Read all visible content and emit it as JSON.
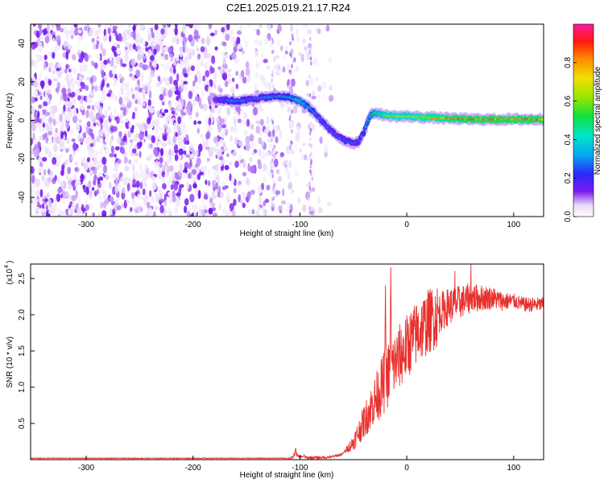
{
  "page_title": "C2E1.2025.019.21.17.R24",
  "chart_data": [
    {
      "type": "heatmap",
      "id": "spectrogram",
      "xlabel": "Height of straight line (km)",
      "ylabel": "Frequency (Hz)",
      "xlim": [
        -352,
        128
      ],
      "ylim": [
        -50,
        50
      ],
      "xticks": [
        -300,
        -200,
        -100,
        0,
        100
      ],
      "yticks": [
        -40,
        -20,
        0,
        20,
        40
      ],
      "colorbar": {
        "label": "Normalized spectral amplitude",
        "range": [
          0,
          1
        ],
        "ticks": [
          0.0,
          0.2,
          0.4,
          0.6,
          0.8
        ],
        "tick_labels": [
          "0.0",
          "0.2",
          "0.4",
          "0.6",
          "0.8"
        ]
      },
      "ridge": {
        "x": [
          -180,
          -170,
          -160,
          -150,
          -140,
          -130,
          -120,
          -110,
          -100,
          -90,
          -80,
          -70,
          -60,
          -50,
          -45,
          -40,
          -35,
          -30,
          -20,
          -10,
          0,
          20,
          40,
          60,
          80,
          100,
          120
        ],
        "y": [
          11,
          10.5,
          10,
          10.5,
          11.5,
          12,
          12.5,
          12,
          10,
          6,
          0,
          -6,
          -10,
          -12,
          -11,
          -6,
          2,
          4,
          2.5,
          2,
          2,
          1.5,
          1,
          0.5,
          0.5,
          0.5,
          0.5
        ],
        "peak_amplitude": [
          0.2,
          0.3,
          0.35,
          0.3,
          0.3,
          0.35,
          0.35,
          0.4,
          0.5,
          0.4,
          0.3,
          0.3,
          0.3,
          0.3,
          0.25,
          0.3,
          0.45,
          0.55,
          0.7,
          0.75,
          0.7,
          0.8,
          0.85,
          0.9,
          0.9,
          0.9,
          0.9
        ]
      },
      "noise_region": {
        "x_range": [
          -352,
          -90
        ],
        "y_range": [
          -50,
          50
        ],
        "amplitude": [
          0.02,
          0.15
        ]
      }
    },
    {
      "type": "line",
      "id": "snr",
      "xlabel": "Height of straight line (km)",
      "ylabel": "SNR (10 * v/v)",
      "y_multiplier": "(x10",
      "y_multiplier_exp": "4",
      "xlim": [
        -352,
        128
      ],
      "ylim": [
        0,
        2.7
      ],
      "xticks": [
        -300,
        -200,
        -100,
        0,
        100
      ],
      "yticks": [
        0.5,
        1.0,
        1.5,
        2.0,
        2.5
      ],
      "ytick_labels": [
        "0.5",
        "1.0",
        "1.5",
        "2.0",
        "2.5"
      ],
      "series": [
        {
          "color": "#e8302c",
          "trend": {
            "x": [
              -352,
              -110,
              -100,
              -95,
              -90,
              -80,
              -70,
              -60,
              -50,
              -40,
              -30,
              -20,
              -10,
              0,
              10,
              20,
              30,
              40,
              50,
              60,
              70,
              80,
              90,
              100,
              110,
              128
            ],
            "y": [
              0.02,
              0.02,
              0.05,
              0.03,
              0.03,
              0.03,
              0.04,
              0.08,
              0.25,
              0.55,
              0.85,
              1.15,
              1.4,
              1.6,
              1.8,
              1.95,
              2.05,
              2.15,
              2.2,
              2.25,
              2.25,
              2.25,
              2.2,
              2.2,
              2.15,
              2.15
            ]
          },
          "spikes": [
            {
              "x": -104,
              "y": 0.16
            },
            {
              "x": -96,
              "y": 0.07
            },
            {
              "x": -20,
              "y": 2.4
            },
            {
              "x": -15,
              "y": 2.65
            },
            {
              "x": 60,
              "y": 2.7
            },
            {
              "x": 45,
              "y": 2.6
            }
          ]
        }
      ]
    }
  ]
}
